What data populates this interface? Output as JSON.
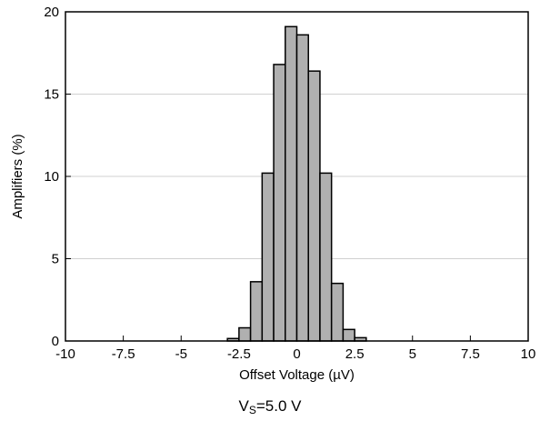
{
  "chart_data": {
    "type": "bar",
    "xlabel": "Offset Voltage (µV)",
    "ylabel": "Amplifiers (%)",
    "xlim": [
      -10,
      10
    ],
    "ylim": [
      0,
      20
    ],
    "x_ticks": [
      -10,
      -7.5,
      -5,
      -2.5,
      0,
      2.5,
      5,
      7.5,
      10
    ],
    "x_tick_labels": [
      "-10",
      "-7.5",
      "-5",
      "-2.5",
      "0",
      "2.5",
      "5",
      "7.5",
      "10"
    ],
    "y_ticks": [
      0,
      5,
      10,
      15,
      20
    ],
    "y_tick_labels": [
      "0",
      "5",
      "10",
      "15",
      "20"
    ],
    "grid": "horizontal",
    "bin_width": 0.5,
    "bins": [
      {
        "x0": -3.0,
        "x1": -2.5,
        "value": 0.15
      },
      {
        "x0": -2.5,
        "x1": -2.0,
        "value": 0.8
      },
      {
        "x0": -2.0,
        "x1": -1.5,
        "value": 3.6
      },
      {
        "x0": -1.5,
        "x1": -1.0,
        "value": 10.2
      },
      {
        "x0": -1.0,
        "x1": -0.5,
        "value": 16.8
      },
      {
        "x0": -0.5,
        "x1": 0.0,
        "value": 19.1
      },
      {
        "x0": 0.0,
        "x1": 0.5,
        "value": 18.6
      },
      {
        "x0": 0.5,
        "x1": 1.0,
        "value": 16.4
      },
      {
        "x0": 1.0,
        "x1": 1.5,
        "value": 10.2
      },
      {
        "x0": 1.5,
        "x1": 2.0,
        "value": 3.5
      },
      {
        "x0": 2.0,
        "x1": 2.5,
        "value": 0.7
      },
      {
        "x0": 2.5,
        "x1": 3.0,
        "value": 0.2
      }
    ],
    "bar_color": "#b0b0b0",
    "bar_edge_color": "#000000",
    "grid_color": "#d0d0d0"
  },
  "caption": {
    "main": "V",
    "sub": "S",
    "rest": "=5.0 V"
  }
}
